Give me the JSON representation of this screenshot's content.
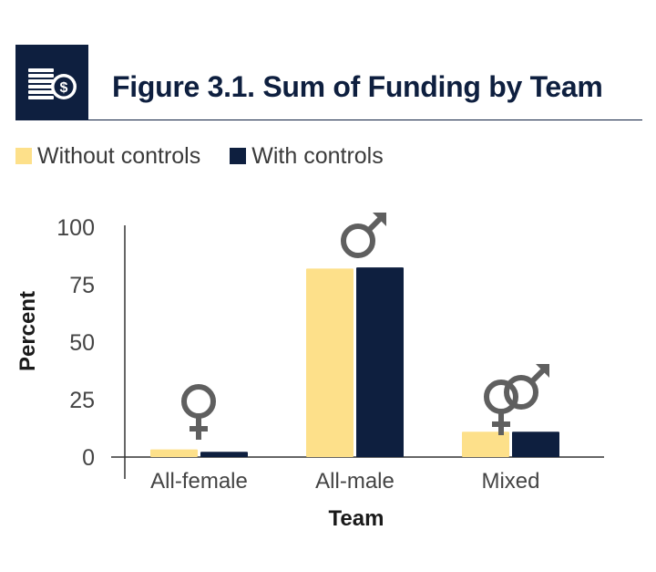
{
  "header": {
    "title": "Figure 3.1. Sum of Funding by Team",
    "icon": "money-coins-icon"
  },
  "legend": {
    "items": [
      {
        "label": "Without controls",
        "color": "#fde08a"
      },
      {
        "label": "With controls",
        "color": "#0e1f3f"
      }
    ]
  },
  "colors": {
    "without": "#fde08a",
    "with": "#0e1f3f",
    "symbol": "#5f5f5f"
  },
  "chart_data": {
    "type": "bar",
    "title": "Figure 3.1. Sum of Funding by Team",
    "xlabel": "Team",
    "ylabel": "Percent",
    "categories": [
      "All-female",
      "All-male",
      "Mixed"
    ],
    "series": [
      {
        "name": "Without controls",
        "values": [
          3.3,
          82.0,
          11.0
        ]
      },
      {
        "name": "With controls",
        "values": [
          2.3,
          82.5,
          11.0
        ]
      }
    ],
    "ylim": [
      0,
      100
    ],
    "yticks": [
      0,
      25,
      50,
      75,
      100
    ],
    "category_symbols": [
      "female-symbol-icon",
      "male-symbol-icon",
      "mixed-gender-symbol-icon"
    ],
    "grid": false,
    "legend_position": "top-left"
  }
}
